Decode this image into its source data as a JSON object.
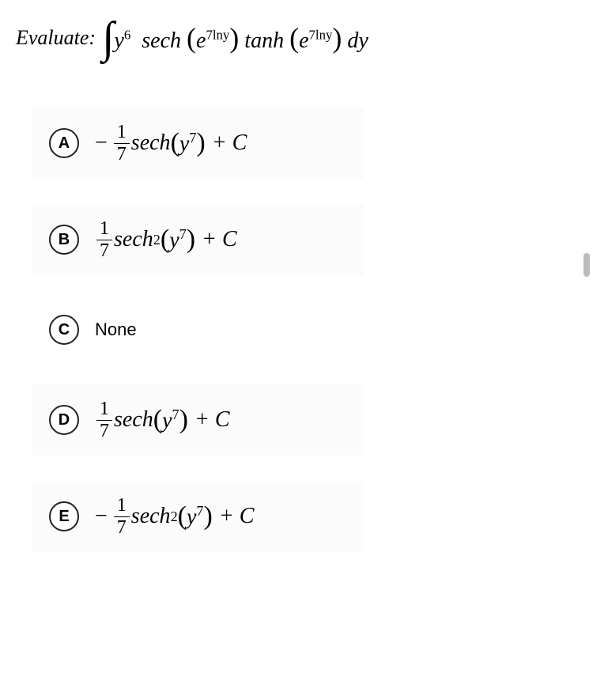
{
  "question": {
    "prompt_label": "Evaluate:",
    "integral_html": "∫ y⁶ sech(e^{7lny}) tanh(e^{7lny}) dy",
    "integrand_y_power": "6",
    "inner_exp_base": "e",
    "inner_exp_power": "7lny",
    "func1": "sech",
    "func2": "tanh",
    "dvar": "dy"
  },
  "options": [
    {
      "letter": "A",
      "has_minus": true,
      "frac_num": "1",
      "frac_den": "7",
      "func": "sech",
      "func_power": "",
      "arg_base": "y",
      "arg_power": "7",
      "tail": "+ C",
      "bg": true
    },
    {
      "letter": "B",
      "has_minus": false,
      "frac_num": "1",
      "frac_den": "7",
      "func": "sech",
      "func_power": "2",
      "arg_base": "y",
      "arg_power": "7",
      "tail": "+ C",
      "bg": true
    },
    {
      "letter": "C",
      "none_label": "None",
      "bg": false,
      "is_none": true
    },
    {
      "letter": "D",
      "has_minus": false,
      "frac_num": "1",
      "frac_den": "7",
      "func": "sech",
      "func_power": "",
      "arg_base": "y",
      "arg_power": "7",
      "tail": "+ C",
      "bg": true
    },
    {
      "letter": "E",
      "has_minus": true,
      "frac_num": "1",
      "frac_den": "7",
      "func": "sech",
      "func_power": "2",
      "arg_base": "y",
      "arg_power": "7",
      "tail": "+ C",
      "bg": true
    }
  ],
  "colors": {
    "page_bg": "#ffffff",
    "option_bg": "#fbfbfb",
    "text": "#000000",
    "circle_border": "#222222",
    "scrollbar": "#bcbcbc"
  },
  "typography": {
    "prompt_fontsize": 26,
    "option_fontsize": 28,
    "letter_fontsize": 20
  }
}
